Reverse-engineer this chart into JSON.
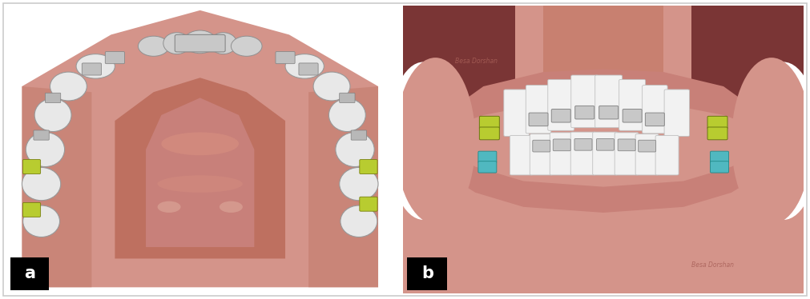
{
  "figure_width": 10.11,
  "figure_height": 3.74,
  "dpi": 100,
  "bg_color": "#ffffff",
  "panel_a": {
    "label": "a",
    "bg": "#ffffff",
    "arch_outer": "#d4948a",
    "arch_inner": "#e8a898",
    "arch_center": "#d8a090",
    "tooth_color": "#e8e8e8",
    "tooth_edge": "#b0b0b0",
    "bracket_gray": "#c0c0c0",
    "bracket_yg": "#b8cc30",
    "gum_dark": "#c07868"
  },
  "panel_b": {
    "label": "b",
    "bg_upper_dark": "#7a3535",
    "bg_upper_mid": "#c07868",
    "bg_salmon": "#d4948a",
    "center_strip": "#c08070",
    "tooth_color": "#f2f2f2",
    "bracket_gray": "#c8c8c8",
    "bracket_yg": "#b8cc30",
    "bracket_teal": "#50b8c0",
    "watermark_color": "#c07868"
  }
}
